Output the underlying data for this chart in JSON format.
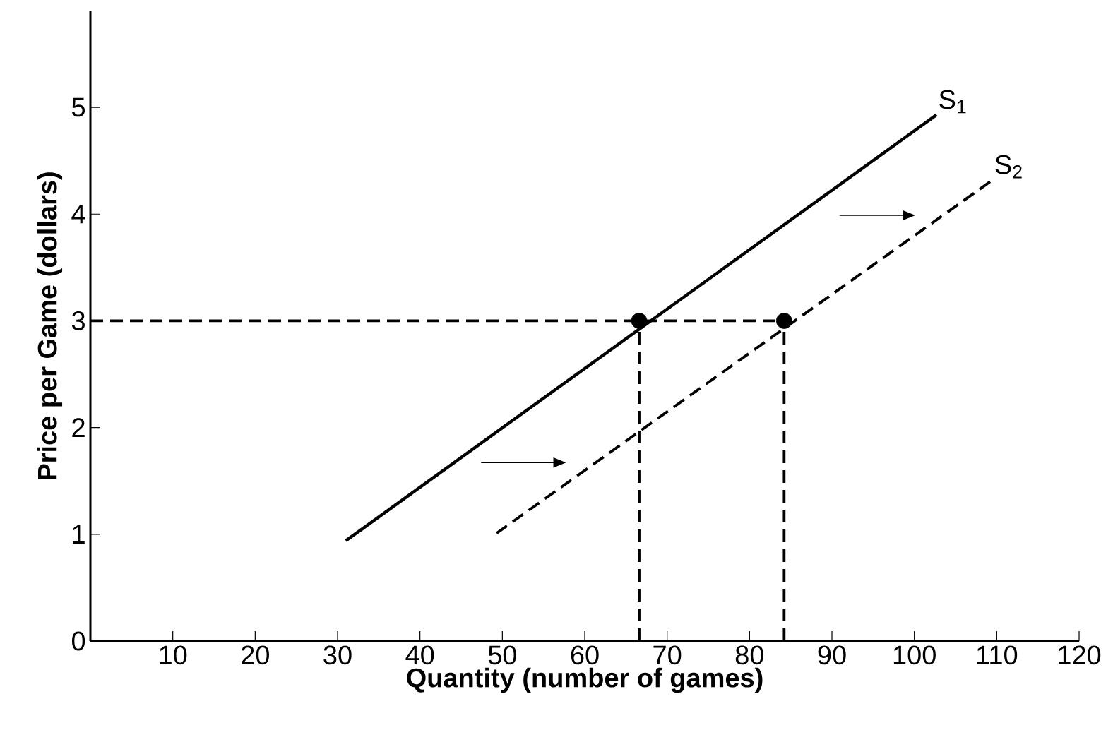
{
  "chart_data": {
    "type": "line",
    "xlabel": "Quantity (number of games)",
    "ylabel": "Price per Game (dollars)",
    "xlim": [
      0,
      120
    ],
    "ylim": [
      0,
      5.9
    ],
    "xticks": [
      10,
      20,
      30,
      40,
      50,
      60,
      70,
      80,
      90,
      100,
      110,
      120
    ],
    "yticks": [
      0,
      1,
      2,
      3,
      4,
      5
    ],
    "grid": false,
    "legend": false,
    "series": [
      {
        "name": "S$_{1}$",
        "color": "#000000",
        "x": [
          31,
          102.7
        ],
        "values": [
          0.94,
          4.93
        ],
        "line_style": "solid"
      },
      {
        "name": "S$_{2}$",
        "color": "#000000",
        "x": [
          49.3,
          109.5
        ],
        "values": [
          1.01,
          4.32
        ],
        "line_style": "dashed"
      },
      {
        "color": "#000000",
        "x": [
          0,
          84.2
        ],
        "values": [
          3,
          3
        ],
        "line_style": "dashed"
      },
      {
        "color": "#000000",
        "x": [
          66.6,
          66.6
        ],
        "values": [
          0,
          3
        ],
        "line_style": "dashed"
      },
      {
        "color": "#000000",
        "x": [
          84.2,
          84.2
        ],
        "values": [
          0,
          3
        ],
        "line_style": "dashed"
      },
      {
        "type": "scatter",
        "color": "#000000",
        "x": [
          66.6,
          84.2
        ],
        "values": [
          3,
          3
        ],
        "marker": "circle"
      }
    ]
  }
}
